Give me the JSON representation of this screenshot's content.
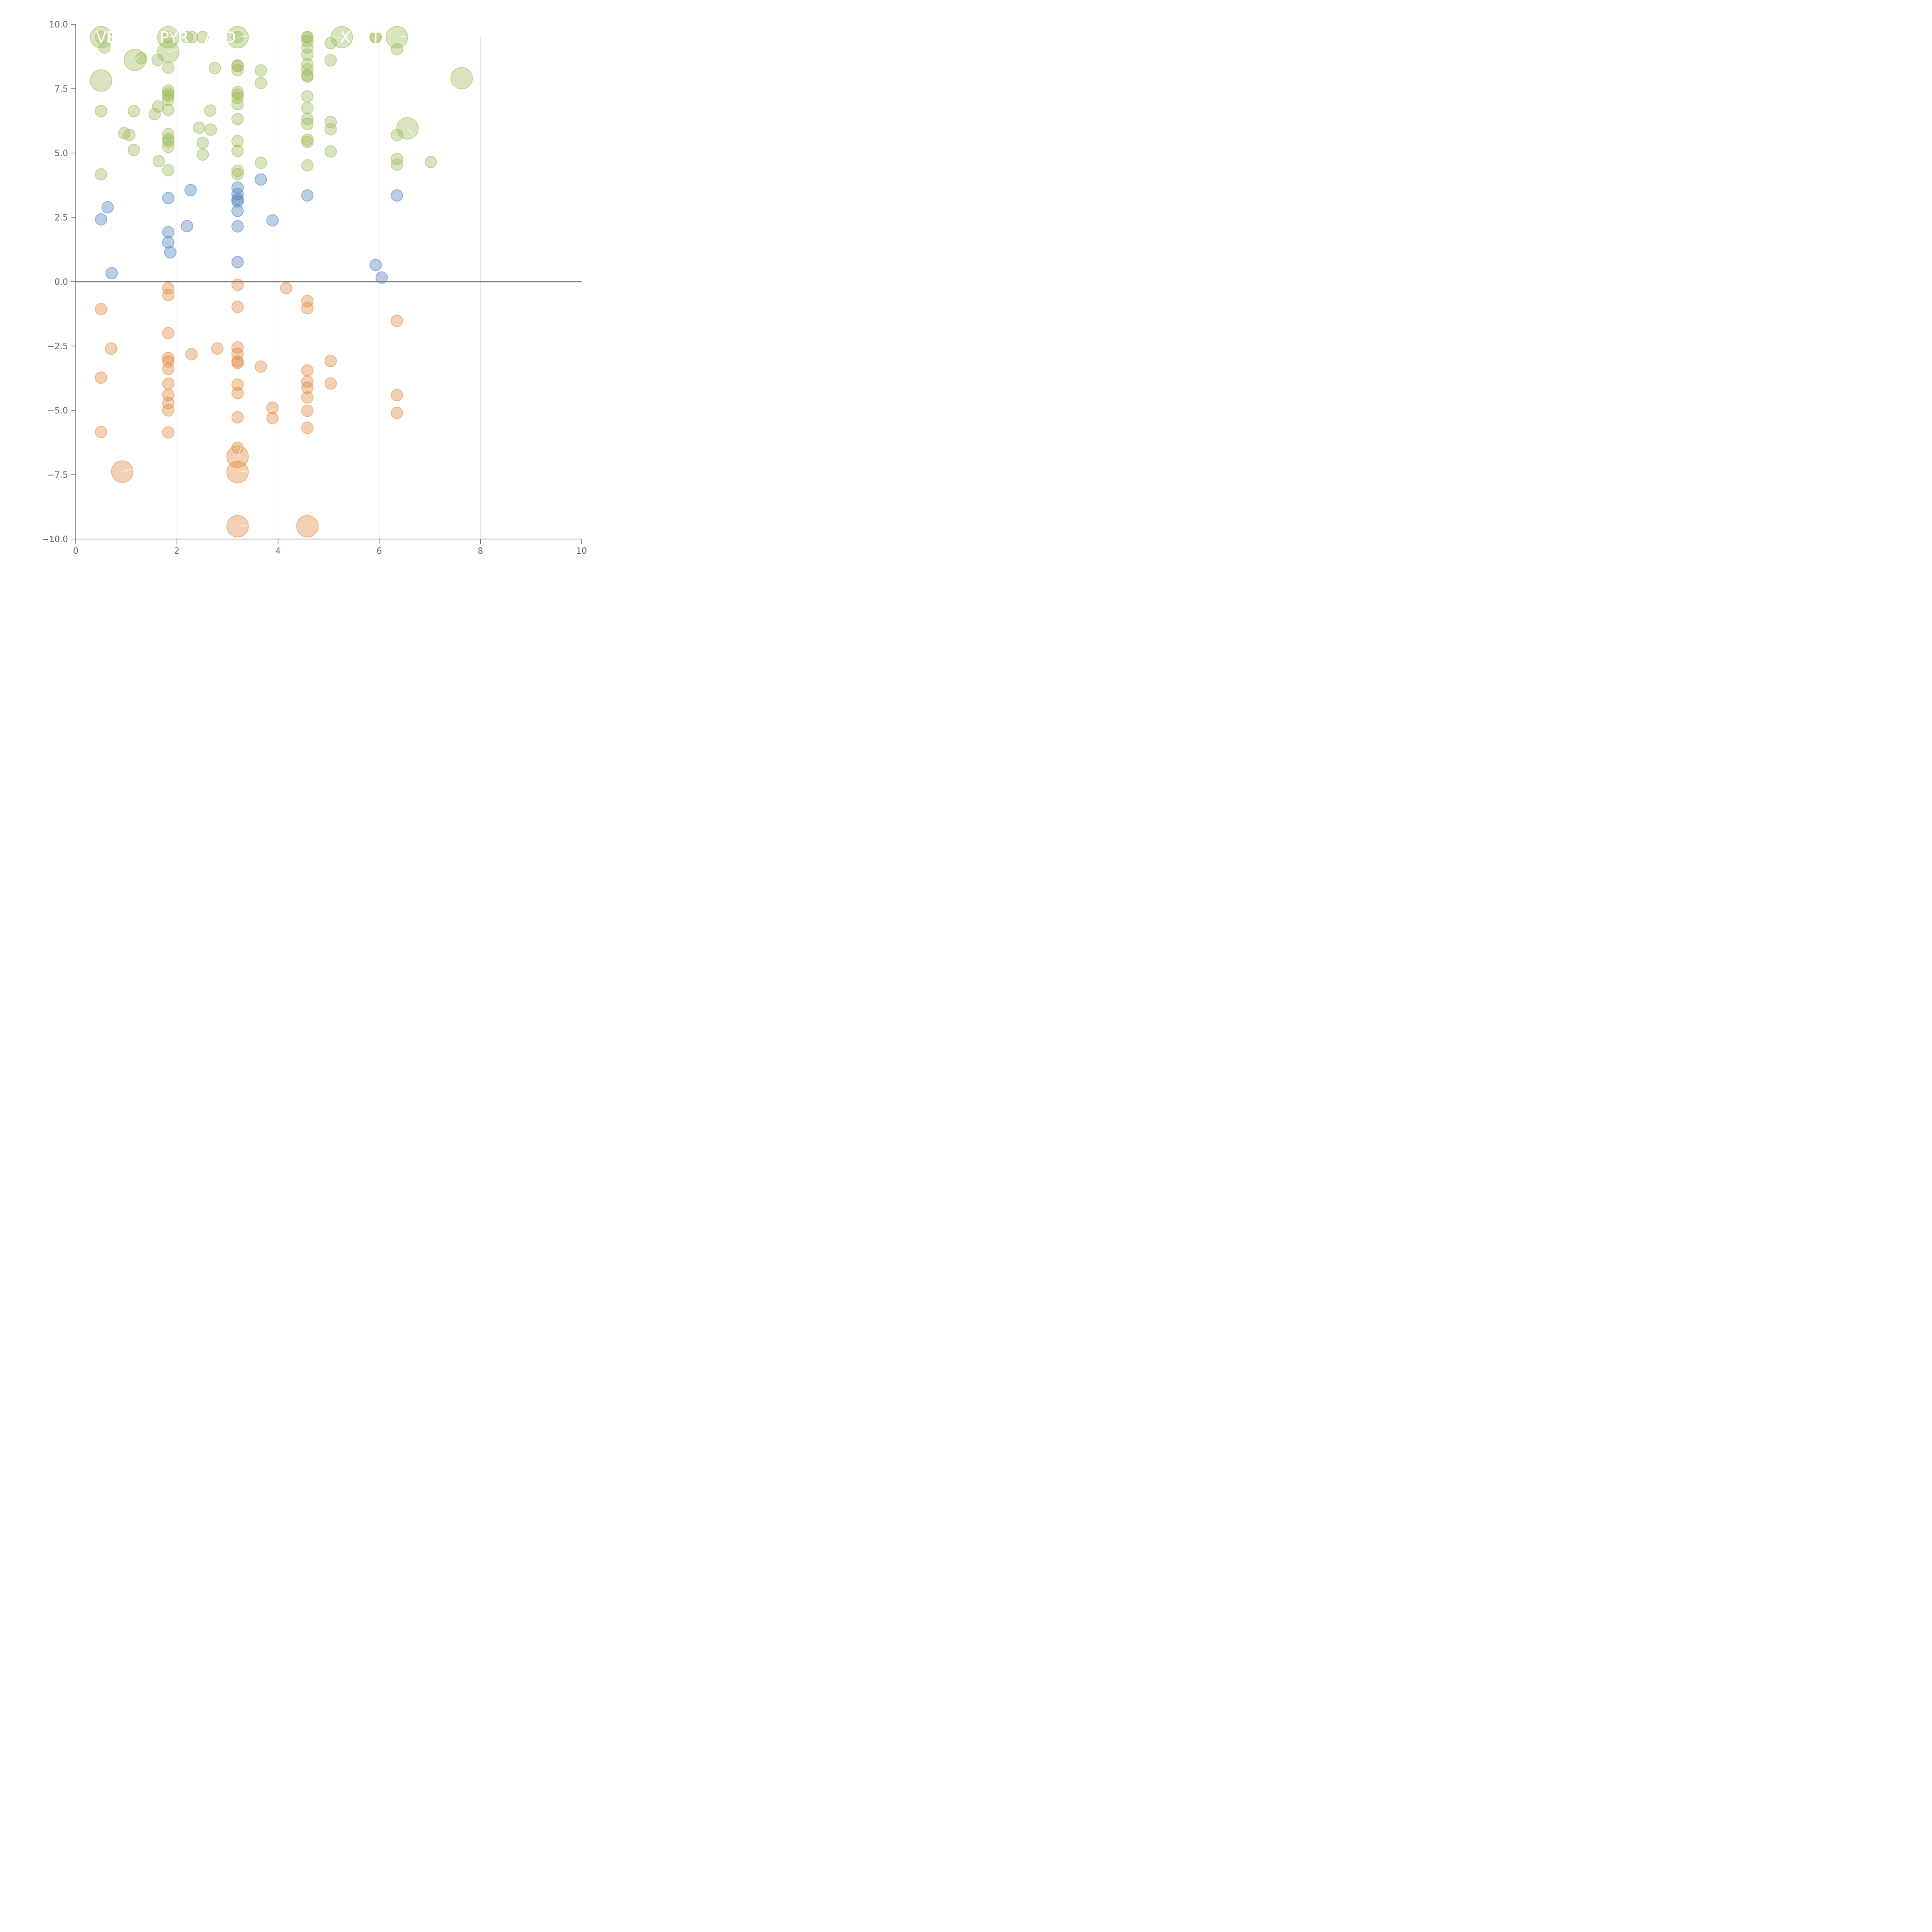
{
  "chart_data": {
    "type": "scatter",
    "title": "",
    "xlabel": "",
    "ylabel": "",
    "xlim": [
      0,
      10
    ],
    "ylim": [
      -10,
      10
    ],
    "x_ticks": [
      0,
      2,
      4,
      6,
      8,
      10
    ],
    "x_tick_labels": [
      "0",
      "2",
      "4",
      "6",
      "8",
      "10"
    ],
    "y_ticks": [
      10,
      7.5,
      5,
      2.5,
      0,
      -2.5,
      -5,
      -7.5,
      -10
    ],
    "y_tick_labels": [
      "10.0",
      "7.5",
      "5.0",
      "2.5",
      "0.0",
      "−2.5",
      "−5.0",
      "−7.5",
      "−10.0"
    ],
    "vertical_grid": true,
    "zero_line": true,
    "colors": {
      "green": "#9BBB59",
      "blue": "#4F81BD",
      "orange": "#E08A3E",
      "axis": "#666666",
      "grid": "#D9D9D9",
      "zero_line": "#808080"
    },
    "series": [
      {
        "color_key": "green",
        "points": [
          [
            0.5,
            9.5,
            2
          ],
          [
            0.5,
            9.5,
            1
          ],
          [
            0.57,
            9.1,
            1
          ],
          [
            0.5,
            7.82,
            2
          ],
          [
            0.5,
            6.63,
            1
          ],
          [
            0.5,
            4.17,
            1
          ],
          [
            0.96,
            5.77,
            1
          ],
          [
            1.06,
            5.7,
            1
          ],
          [
            1.15,
            6.63,
            1
          ],
          [
            1.15,
            5.12,
            1
          ],
          [
            1.17,
            8.62,
            2
          ],
          [
            1.3,
            8.68,
            1
          ],
          [
            1.56,
            6.51,
            1
          ],
          [
            1.62,
            8.62,
            1
          ],
          [
            1.63,
            6.81,
            1
          ],
          [
            1.64,
            4.68,
            1
          ],
          [
            1.83,
            9.5,
            2
          ],
          [
            1.83,
            9.5,
            1
          ],
          [
            1.83,
            8.93,
            2
          ],
          [
            1.83,
            8.32,
            1
          ],
          [
            1.83,
            7.43,
            1
          ],
          [
            1.83,
            7.31,
            1
          ],
          [
            1.83,
            7.22,
            1
          ],
          [
            1.83,
            7.07,
            1
          ],
          [
            1.83,
            6.68,
            1
          ],
          [
            1.83,
            5.74,
            1
          ],
          [
            1.83,
            5.54,
            1
          ],
          [
            1.83,
            5.45,
            1
          ],
          [
            1.83,
            5.24,
            1
          ],
          [
            1.83,
            4.33,
            1
          ],
          [
            2.2,
            9.5,
            1
          ],
          [
            2.3,
            9.5,
            1
          ],
          [
            2.44,
            5.98,
            1
          ],
          [
            2.51,
            5.4,
            1
          ],
          [
            2.51,
            4.94,
            1
          ],
          [
            2.51,
            9.5,
            1
          ],
          [
            2.66,
            6.65,
            1
          ],
          [
            2.67,
            5.91,
            1
          ],
          [
            2.75,
            8.3,
            1
          ],
          [
            3.2,
            9.5,
            2
          ],
          [
            3.2,
            9.5,
            1
          ],
          [
            3.2,
            8.4,
            1
          ],
          [
            3.2,
            8.38,
            1
          ],
          [
            3.2,
            8.22,
            1
          ],
          [
            3.2,
            7.37,
            1
          ],
          [
            3.2,
            7.27,
            1
          ],
          [
            3.2,
            7.14,
            1
          ],
          [
            3.2,
            6.9,
            1
          ],
          [
            3.2,
            6.32,
            1
          ],
          [
            3.2,
            5.46,
            1
          ],
          [
            3.2,
            5.08,
            1
          ],
          [
            3.2,
            4.31,
            1
          ],
          [
            3.2,
            4.18,
            1
          ],
          [
            3.66,
            8.21,
            1
          ],
          [
            3.66,
            7.72,
            1
          ],
          [
            3.66,
            4.62,
            1
          ],
          [
            4.58,
            9.5,
            1
          ],
          [
            4.58,
            9.5,
            1
          ],
          [
            4.58,
            9.35,
            1
          ],
          [
            4.58,
            9.1,
            1
          ],
          [
            4.58,
            8.82,
            1
          ],
          [
            4.58,
            8.45,
            1
          ],
          [
            4.58,
            8.25,
            1
          ],
          [
            4.58,
            8.02,
            1
          ],
          [
            4.58,
            7.97,
            1
          ],
          [
            4.58,
            7.2,
            1
          ],
          [
            4.58,
            6.75,
            1
          ],
          [
            4.58,
            6.33,
            1
          ],
          [
            4.58,
            6.13,
            1
          ],
          [
            4.58,
            5.52,
            1
          ],
          [
            4.58,
            5.43,
            1
          ],
          [
            4.58,
            4.52,
            1
          ],
          [
            5.04,
            9.27,
            1
          ],
          [
            5.04,
            8.6,
            1
          ],
          [
            5.04,
            6.21,
            1
          ],
          [
            5.04,
            5.92,
            1
          ],
          [
            5.04,
            5.06,
            1
          ],
          [
            5.26,
            9.5,
            2
          ],
          [
            5.93,
            9.5,
            1
          ],
          [
            5.93,
            9.5,
            1
          ],
          [
            6.35,
            9.5,
            2
          ],
          [
            6.35,
            9.03,
            1
          ],
          [
            6.35,
            5.7,
            1
          ],
          [
            6.35,
            4.77,
            1
          ],
          [
            6.35,
            4.55,
            1
          ],
          [
            6.56,
            5.96,
            2
          ],
          [
            7.02,
            4.65,
            1
          ],
          [
            7.63,
            7.91,
            2
          ]
        ]
      },
      {
        "color_key": "blue",
        "points": [
          [
            0.5,
            2.42,
            1
          ],
          [
            0.63,
            2.89,
            1
          ],
          [
            0.71,
            0.33,
            1
          ],
          [
            1.83,
            3.25,
            1
          ],
          [
            1.83,
            1.92,
            1
          ],
          [
            1.83,
            1.53,
            1
          ],
          [
            1.87,
            1.14,
            1
          ],
          [
            2.2,
            2.16,
            1
          ],
          [
            2.27,
            3.56,
            1
          ],
          [
            3.2,
            3.66,
            1
          ],
          [
            3.2,
            3.4,
            1
          ],
          [
            3.2,
            3.21,
            1
          ],
          [
            3.2,
            3.12,
            1
          ],
          [
            3.2,
            2.75,
            1
          ],
          [
            3.2,
            2.15,
            1
          ],
          [
            3.2,
            0.76,
            1
          ],
          [
            3.66,
            3.97,
            1
          ],
          [
            3.89,
            2.38,
            1
          ],
          [
            4.58,
            3.35,
            1
          ],
          [
            5.93,
            0.65,
            1
          ],
          [
            6.05,
            0.16,
            1
          ],
          [
            6.35,
            3.35,
            1
          ]
        ]
      },
      {
        "color_key": "orange",
        "points": [
          [
            0.5,
            -1.07,
            1
          ],
          [
            0.5,
            -3.73,
            1
          ],
          [
            0.5,
            -5.84,
            1
          ],
          [
            0.7,
            -2.6,
            1
          ],
          [
            0.92,
            -7.38,
            2
          ],
          [
            1.83,
            -0.25,
            1
          ],
          [
            1.83,
            -0.52,
            1
          ],
          [
            1.83,
            -2.0,
            1
          ],
          [
            1.83,
            -2.97,
            1
          ],
          [
            1.83,
            -3.1,
            1
          ],
          [
            1.83,
            -3.39,
            1
          ],
          [
            1.83,
            -3.96,
            1
          ],
          [
            1.83,
            -4.4,
            1
          ],
          [
            1.83,
            -4.72,
            1
          ],
          [
            1.83,
            -5.0,
            1
          ],
          [
            1.83,
            -5.86,
            1
          ],
          [
            2.29,
            -2.82,
            1
          ],
          [
            2.8,
            -2.6,
            1
          ],
          [
            3.2,
            -0.12,
            1
          ],
          [
            3.2,
            -0.98,
            1
          ],
          [
            3.2,
            -2.55,
            1
          ],
          [
            3.2,
            -2.8,
            1
          ],
          [
            3.2,
            -3.1,
            1
          ],
          [
            3.2,
            -3.16,
            1
          ],
          [
            3.2,
            -4.0,
            1
          ],
          [
            3.2,
            -4.33,
            1
          ],
          [
            3.2,
            -5.27,
            1
          ],
          [
            3.2,
            -6.45,
            1
          ],
          [
            3.2,
            -6.8,
            2
          ],
          [
            3.2,
            -7.4,
            2
          ],
          [
            3.2,
            -9.5,
            2
          ],
          [
            3.66,
            -3.3,
            1
          ],
          [
            3.89,
            -4.9,
            1
          ],
          [
            3.89,
            -5.3,
            1
          ],
          [
            4.16,
            -0.25,
            1
          ],
          [
            4.58,
            -0.75,
            1
          ],
          [
            4.58,
            -1.03,
            1
          ],
          [
            4.58,
            -3.45,
            1
          ],
          [
            4.58,
            -3.88,
            1
          ],
          [
            4.58,
            -4.12,
            1
          ],
          [
            4.58,
            -4.5,
            1
          ],
          [
            4.58,
            -5.02,
            1
          ],
          [
            4.58,
            -5.68,
            1
          ],
          [
            4.58,
            -9.5,
            2
          ],
          [
            5.04,
            -3.08,
            1
          ],
          [
            5.04,
            -3.96,
            1
          ],
          [
            6.35,
            -1.52,
            1
          ],
          [
            6.35,
            -4.41,
            1
          ],
          [
            6.35,
            -5.1,
            1
          ]
        ]
      }
    ],
    "annotations": [
      {
        "text": "VE",
        "x": 0.6,
        "y": 9.5
      },
      {
        "text": "PYR",
        "x": 1.95,
        "y": 9.5
      },
      {
        "text": "A",
        "x": 2.65,
        "y": 9.5
      },
      {
        "text": "D",
        "x": 3.05,
        "y": 9.5
      },
      {
        "text": "X",
        "x": 5.33,
        "y": 9.5
      },
      {
        "text": "T",
        "x": 5.93,
        "y": 9.5
      }
    ],
    "connectors": [
      [
        1.83,
        9.5,
        2.05,
        9.6
      ],
      [
        1.83,
        8.93,
        2.05,
        9.05
      ],
      [
        1.17,
        8.62,
        1.25,
        8.75
      ],
      [
        3.2,
        9.5,
        3.42,
        9.55
      ],
      [
        5.26,
        9.5,
        5.05,
        9.5
      ],
      [
        6.35,
        9.5,
        6.57,
        9.55
      ],
      [
        6.56,
        5.96,
        6.7,
        5.65
      ],
      [
        3.2,
        -6.8,
        3.28,
        -6.4
      ],
      [
        3.2,
        -7.4,
        3.42,
        -7.35
      ],
      [
        0.92,
        -7.38,
        1.12,
        -7.28
      ],
      [
        3.2,
        -9.5,
        3.42,
        -9.45
      ],
      [
        3.92,
        -4.95,
        3.82,
        -5.05
      ]
    ]
  }
}
